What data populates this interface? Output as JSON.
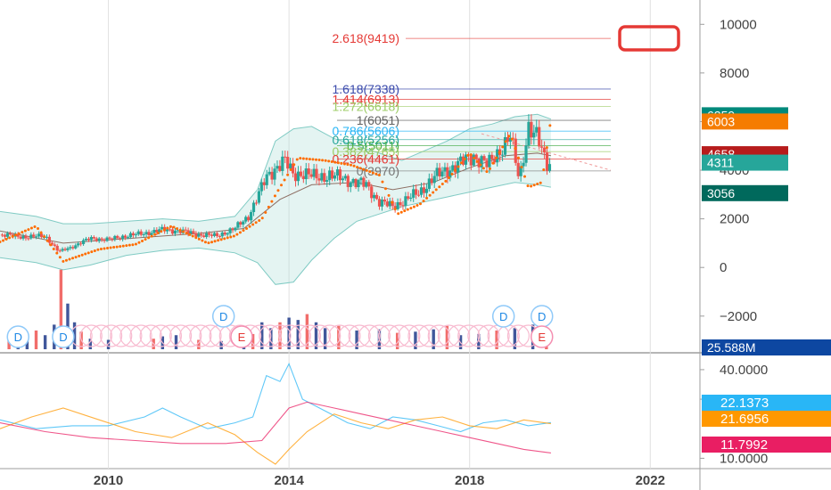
{
  "chart_data": [
    {
      "type": "candlestick",
      "x_axis": {
        "range": [
          2007.6,
          2023.1
        ],
        "ticks": [
          "2010",
          "2014",
          "2018",
          "2022"
        ],
        "tick_values": [
          2010,
          2014,
          2018,
          2022
        ]
      },
      "y_axis": {
        "range": [
          -3400,
          11000
        ],
        "ticks": [
          "10000",
          "8000",
          "6000",
          "4000",
          "2000",
          "0",
          "−2000"
        ],
        "tick_values": [
          10000,
          8000,
          6000,
          4000,
          2000,
          0,
          -2000
        ]
      },
      "fib_levels": [
        {
          "label": "2.618(9419)",
          "value": 9419,
          "color": "#e53935"
        },
        {
          "label": "1.618(7338)",
          "value": 7338,
          "color": "#3949ab"
        },
        {
          "label": "1.414(6913)",
          "value": 6913,
          "color": "#e53935"
        },
        {
          "label": "1.272(6618)",
          "value": 6618,
          "color": "#9ccc65"
        },
        {
          "label": "1(6051)",
          "value": 6051,
          "color": "#616161"
        },
        {
          "label": "0.786(5606)",
          "value": 5606,
          "color": "#29b6f6"
        },
        {
          "label": "0.618(5256)",
          "value": 5256,
          "color": "#26a69a"
        },
        {
          "label": "0.5(5011)",
          "value": 5011,
          "color": "#4caf50"
        },
        {
          "label": "0.382(4765)",
          "value": 4765,
          "color": "#9ccc65"
        },
        {
          "label": "0.236(4461)",
          "value": 4461,
          "color": "#e53935"
        },
        {
          "label": "0(3970)",
          "value": 3970,
          "color": "#757575"
        }
      ],
      "price_badges": [
        {
          "label": "6259",
          "value": 6259,
          "color": "#00897b"
        },
        {
          "label": "6003",
          "value": 6003,
          "color": "#f57c00"
        },
        {
          "label": "4658",
          "value": 4658,
          "color": "#b71c1c"
        },
        {
          "label": "4311",
          "value": 4311,
          "color": "#26a69a"
        },
        {
          "label": "3056",
          "value": 3056,
          "color": "#00695c"
        }
      ],
      "volume_badge": {
        "label": "25.588M",
        "color": "#0d47a1"
      },
      "price_series": [
        [
          2007.6,
          1350
        ],
        [
          2008.2,
          1250
        ],
        [
          2008.6,
          1300
        ],
        [
          2008.9,
          650
        ],
        [
          2009.2,
          850
        ],
        [
          2009.6,
          1200
        ],
        [
          2010.0,
          1150
        ],
        [
          2010.4,
          1300
        ],
        [
          2010.8,
          1400
        ],
        [
          2011.2,
          1550
        ],
        [
          2011.6,
          1500
        ],
        [
          2012.0,
          1350
        ],
        [
          2012.4,
          1300
        ],
        [
          2012.8,
          1600
        ],
        [
          2013.1,
          2100
        ],
        [
          2013.3,
          2900
        ],
        [
          2013.5,
          3700
        ],
        [
          2013.7,
          4100
        ],
        [
          2013.9,
          4400
        ],
        [
          2014.1,
          3800
        ],
        [
          2014.3,
          3900
        ],
        [
          2014.6,
          3700
        ],
        [
          2014.9,
          3800
        ],
        [
          2015.3,
          3600
        ],
        [
          2015.7,
          3400
        ],
        [
          2016.0,
          2700
        ],
        [
          2016.3,
          2500
        ],
        [
          2016.6,
          2800
        ],
        [
          2016.9,
          3100
        ],
        [
          2017.2,
          3700
        ],
        [
          2017.5,
          4000
        ],
        [
          2017.8,
          4300
        ],
        [
          2018.1,
          4600
        ],
        [
          2018.4,
          4200
        ],
        [
          2018.7,
          4900
        ],
        [
          2018.9,
          5400
        ],
        [
          2019.1,
          3600
        ],
        [
          2019.3,
          5800
        ],
        [
          2019.5,
          5300
        ],
        [
          2019.7,
          4300
        ],
        [
          2019.8,
          4311
        ]
      ],
      "bollinger_upper": [
        [
          2007.6,
          2300
        ],
        [
          2008.4,
          2100
        ],
        [
          2009.0,
          1800
        ],
        [
          2009.6,
          1800
        ],
        [
          2010.4,
          1900
        ],
        [
          2011.2,
          2000
        ],
        [
          2012.0,
          1900
        ],
        [
          2012.8,
          2100
        ],
        [
          2013.3,
          3200
        ],
        [
          2013.7,
          5200
        ],
        [
          2014.1,
          5700
        ],
        [
          2014.5,
          5800
        ],
        [
          2015.0,
          5300
        ],
        [
          2015.5,
          5000
        ],
        [
          2016.0,
          4700
        ],
        [
          2016.5,
          4400
        ],
        [
          2017.0,
          4800
        ],
        [
          2017.5,
          5200
        ],
        [
          2018.0,
          5700
        ],
        [
          2018.5,
          5900
        ],
        [
          2019.0,
          6200
        ],
        [
          2019.5,
          6300
        ],
        [
          2019.8,
          6100
        ]
      ],
      "bollinger_lower": [
        [
          2007.6,
          400
        ],
        [
          2008.4,
          200
        ],
        [
          2009.0,
          -100
        ],
        [
          2009.6,
          100
        ],
        [
          2010.4,
          500
        ],
        [
          2011.2,
          700
        ],
        [
          2012.0,
          800
        ],
        [
          2012.8,
          600
        ],
        [
          2013.3,
          200
        ],
        [
          2013.7,
          -700
        ],
        [
          2014.1,
          -600
        ],
        [
          2014.5,
          300
        ],
        [
          2015.0,
          1200
        ],
        [
          2015.5,
          1900
        ],
        [
          2016.0,
          2200
        ],
        [
          2016.5,
          2500
        ],
        [
          2017.0,
          2700
        ],
        [
          2017.5,
          2900
        ],
        [
          2018.0,
          3100
        ],
        [
          2018.5,
          3300
        ],
        [
          2019.0,
          3500
        ],
        [
          2019.5,
          3400
        ],
        [
          2019.8,
          3300
        ]
      ],
      "sar_series": [
        [
          2007.6,
          1050
        ],
        [
          2008.4,
          1700
        ],
        [
          2009.0,
          250
        ],
        [
          2009.8,
          750
        ],
        [
          2010.6,
          950
        ],
        [
          2011.4,
          1700
        ],
        [
          2012.2,
          1000
        ],
        [
          2012.8,
          1300
        ],
        [
          2013.4,
          2000
        ],
        [
          2013.8,
          3300
        ],
        [
          2014.2,
          4500
        ],
        [
          2014.8,
          4400
        ],
        [
          2015.4,
          4200
        ],
        [
          2016.0,
          3800
        ],
        [
          2016.4,
          2200
        ],
        [
          2016.9,
          2600
        ],
        [
          2017.5,
          3600
        ],
        [
          2018.0,
          4700
        ],
        [
          2018.4,
          3900
        ],
        [
          2018.9,
          5500
        ],
        [
          2019.3,
          3300
        ],
        [
          2019.6,
          3500
        ],
        [
          2019.8,
          6100
        ]
      ],
      "ma_series": [
        [
          2007.6,
          1500
        ],
        [
          2009.0,
          1000
        ],
        [
          2010.5,
          1200
        ],
        [
          2012.0,
          1400
        ],
        [
          2013.0,
          1600
        ],
        [
          2013.8,
          2800
        ],
        [
          2014.5,
          3400
        ],
        [
          2015.5,
          3500
        ],
        [
          2016.3,
          3200
        ],
        [
          2017.2,
          3500
        ],
        [
          2018.0,
          4100
        ],
        [
          2018.8,
          4600
        ],
        [
          2019.5,
          4700
        ],
        [
          2019.8,
          4600
        ]
      ],
      "volume_bars": [
        [
          2007.8,
          900
        ],
        [
          2008.0,
          1400
        ],
        [
          2008.2,
          1100
        ],
        [
          2008.4,
          1600
        ],
        [
          2008.6,
          1200
        ],
        [
          2008.8,
          2100
        ],
        [
          2008.95,
          6800
        ],
        [
          2009.1,
          3900
        ],
        [
          2009.25,
          2300
        ],
        [
          2009.4,
          1500
        ],
        [
          2009.6,
          900
        ],
        [
          2010.0,
          800
        ],
        [
          2011.0,
          900
        ],
        [
          2011.2,
          1100
        ],
        [
          2011.5,
          1200
        ],
        [
          2012.0,
          800
        ],
        [
          2012.5,
          700
        ],
        [
          2013.0,
          1500
        ],
        [
          2013.2,
          1300
        ],
        [
          2013.4,
          2300
        ],
        [
          2013.6,
          1800
        ],
        [
          2013.8,
          2300
        ],
        [
          2014.0,
          2700
        ],
        [
          2014.2,
          2500
        ],
        [
          2014.4,
          3000
        ],
        [
          2014.6,
          2300
        ],
        [
          2014.8,
          1800
        ],
        [
          2015.1,
          2000
        ],
        [
          2015.5,
          1600
        ],
        [
          2016.0,
          1700
        ],
        [
          2016.4,
          1400
        ],
        [
          2016.8,
          1500
        ],
        [
          2017.2,
          1700
        ],
        [
          2017.5,
          2000
        ],
        [
          2017.8,
          1200
        ],
        [
          2018.2,
          1300
        ],
        [
          2018.6,
          1600
        ],
        [
          2019.0,
          1800
        ],
        [
          2019.4,
          2100
        ],
        [
          2019.7,
          1500
        ]
      ],
      "event_markers": [
        {
          "label": "D",
          "x": 2008.0,
          "row": "lower"
        },
        {
          "label": "D",
          "x": 2009.0,
          "row": "lower"
        },
        {
          "label": "D",
          "x": 2012.55,
          "row": "upper"
        },
        {
          "label": "E",
          "x": 2012.95,
          "row": "lower"
        },
        {
          "label": "D",
          "x": 2018.75,
          "row": "upper"
        },
        {
          "label": "D",
          "x": 2019.6,
          "row": "upper"
        },
        {
          "label": "E",
          "x": 2019.6,
          "row": "lower"
        }
      ],
      "earnings_chain": {
        "start": 2009.4,
        "end": 2019.4,
        "step": 0.22
      }
    },
    {
      "type": "line",
      "y_axis": {
        "range": [
          6.8,
          44.5
        ],
        "ticks": [
          "40.0000",
          "30.0000",
          "10.0000"
        ],
        "tick_values": [
          40,
          30,
          10
        ]
      },
      "series": [
        {
          "value_label": "22.1373",
          "color": "#29b6f6",
          "values": [
            [
              2007.6,
              23
            ],
            [
              2008.4,
              20
            ],
            [
              2009.2,
              21
            ],
            [
              2010.0,
              21
            ],
            [
              2010.8,
              24
            ],
            [
              2011.2,
              27
            ],
            [
              2011.6,
              24
            ],
            [
              2012.2,
              20
            ],
            [
              2012.8,
              22
            ],
            [
              2013.2,
              24
            ],
            [
              2013.5,
              38
            ],
            [
              2013.8,
              36
            ],
            [
              2014.0,
              42
            ],
            [
              2014.3,
              30
            ],
            [
              2014.8,
              26
            ],
            [
              2015.3,
              22
            ],
            [
              2015.8,
              20
            ],
            [
              2016.3,
              24
            ],
            [
              2016.8,
              23
            ],
            [
              2017.3,
              21
            ],
            [
              2017.8,
              19
            ],
            [
              2018.3,
              22
            ],
            [
              2018.8,
              23
            ],
            [
              2019.3,
              21
            ],
            [
              2019.8,
              22.1
            ]
          ]
        },
        {
          "value_label": "21.6956",
          "color": "#ff9800",
          "values": [
            [
              2007.6,
              20
            ],
            [
              2008.3,
              24
            ],
            [
              2009.0,
              27
            ],
            [
              2009.8,
              23
            ],
            [
              2010.6,
              19
            ],
            [
              2011.4,
              17
            ],
            [
              2012.2,
              22
            ],
            [
              2012.8,
              18
            ],
            [
              2013.3,
              12
            ],
            [
              2013.7,
              8
            ],
            [
              2014.0,
              13
            ],
            [
              2014.4,
              19
            ],
            [
              2015.0,
              25
            ],
            [
              2015.6,
              22
            ],
            [
              2016.2,
              20
            ],
            [
              2016.8,
              23
            ],
            [
              2017.4,
              24
            ],
            [
              2018.0,
              21
            ],
            [
              2018.6,
              20
            ],
            [
              2019.2,
              23
            ],
            [
              2019.8,
              21.7
            ]
          ]
        },
        {
          "value_label": "11.7992",
          "color": "#e91e63",
          "values": [
            [
              2007.6,
              22
            ],
            [
              2008.6,
              19
            ],
            [
              2009.6,
              17
            ],
            [
              2010.6,
              16
            ],
            [
              2011.6,
              15
            ],
            [
              2012.6,
              15
            ],
            [
              2013.4,
              16
            ],
            [
              2014.0,
              27
            ],
            [
              2014.4,
              29
            ],
            [
              2015.0,
              27
            ],
            [
              2015.6,
              25
            ],
            [
              2016.2,
              23
            ],
            [
              2016.8,
              21
            ],
            [
              2017.4,
              19
            ],
            [
              2018.0,
              17
            ],
            [
              2018.6,
              15
            ],
            [
              2019.2,
              13
            ],
            [
              2019.8,
              11.8
            ]
          ]
        }
      ]
    }
  ]
}
